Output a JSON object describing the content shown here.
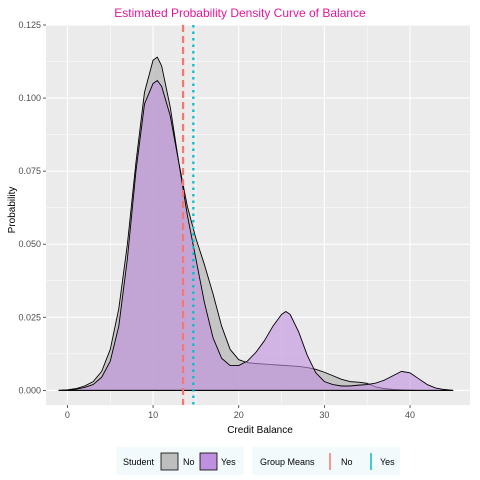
{
  "chart_data": {
    "type": "area",
    "title": "Estimated Probability Density Curve of Balance",
    "xlabel": "Credit Balance",
    "ylabel": "Probability",
    "xlim": [
      -2.5,
      47
    ],
    "ylim": [
      -0.005,
      0.125
    ],
    "x_ticks": [
      0,
      10,
      20,
      30,
      40
    ],
    "y_ticks": [
      0.0,
      0.025,
      0.05,
      0.075,
      0.1,
      0.125
    ],
    "y_tick_labels": [
      "0.000",
      "0.025",
      "0.050",
      "0.075",
      "0.100",
      "0.125"
    ],
    "grid": true,
    "legend_position": "bottom",
    "colors": {
      "title": "#e0179e",
      "panel": "#ebebeb",
      "grid": "#ffffff",
      "no_fill": "#bebebe",
      "yes_fill": "#bf8fe0",
      "no_mean_line": "#f8766d",
      "yes_mean_line": "#00bfc4"
    },
    "series": [
      {
        "name": "No",
        "x": [
          -1,
          0,
          1,
          2,
          3,
          4,
          5,
          6,
          7,
          8,
          9,
          10,
          10.5,
          11,
          12,
          13,
          14,
          15,
          16,
          17,
          18,
          19,
          20,
          21,
          22,
          23,
          24,
          25,
          26,
          27,
          28,
          29,
          30,
          31,
          32,
          33,
          34,
          35,
          36,
          37,
          38,
          39,
          40,
          41,
          42,
          43,
          44,
          45
        ],
        "y": [
          0.0,
          0.0002,
          0.0006,
          0.0015,
          0.003,
          0.0065,
          0.014,
          0.028,
          0.05,
          0.078,
          0.102,
          0.113,
          0.114,
          0.111,
          0.097,
          0.078,
          0.063,
          0.052,
          0.043,
          0.033,
          0.022,
          0.014,
          0.0105,
          0.0095,
          0.0092,
          0.009,
          0.0088,
          0.0086,
          0.0084,
          0.0082,
          0.0078,
          0.0072,
          0.0062,
          0.005,
          0.0038,
          0.003,
          0.0028,
          0.0024,
          0.0012,
          0.0006,
          0.0003,
          0.0002,
          0.0001,
          0.0,
          0.0,
          0.0,
          0.0,
          0.0
        ]
      },
      {
        "name": "Yes",
        "x": [
          -1,
          0,
          1,
          2,
          3,
          4,
          5,
          6,
          7,
          8,
          9,
          10,
          10.5,
          11,
          12,
          13,
          14,
          15,
          16,
          17,
          18,
          19,
          20,
          21,
          22,
          23,
          24,
          25,
          25.5,
          26,
          27,
          28,
          29,
          30,
          31,
          32,
          33,
          34,
          35,
          36,
          37,
          38,
          39,
          40,
          41,
          42,
          43,
          44,
          45
        ],
        "y": [
          0.0,
          0.0001,
          0.0004,
          0.001,
          0.002,
          0.0045,
          0.01,
          0.022,
          0.045,
          0.075,
          0.098,
          0.105,
          0.106,
          0.104,
          0.094,
          0.078,
          0.06,
          0.045,
          0.03,
          0.018,
          0.011,
          0.0085,
          0.0085,
          0.01,
          0.013,
          0.017,
          0.022,
          0.026,
          0.027,
          0.026,
          0.02,
          0.012,
          0.006,
          0.003,
          0.002,
          0.0015,
          0.0015,
          0.0018,
          0.002,
          0.0025,
          0.0035,
          0.005,
          0.0065,
          0.006,
          0.004,
          0.002,
          0.0008,
          0.0003,
          0.0
        ]
      }
    ],
    "group_means": [
      {
        "name": "No",
        "x": 13.5
      },
      {
        "name": "Yes",
        "x": 14.7
      }
    ],
    "legend": {
      "fill_title": "Student",
      "fill_entries": [
        "No",
        "Yes"
      ],
      "line_title": "Group Means",
      "line_entries": [
        "No",
        "Yes"
      ]
    }
  }
}
